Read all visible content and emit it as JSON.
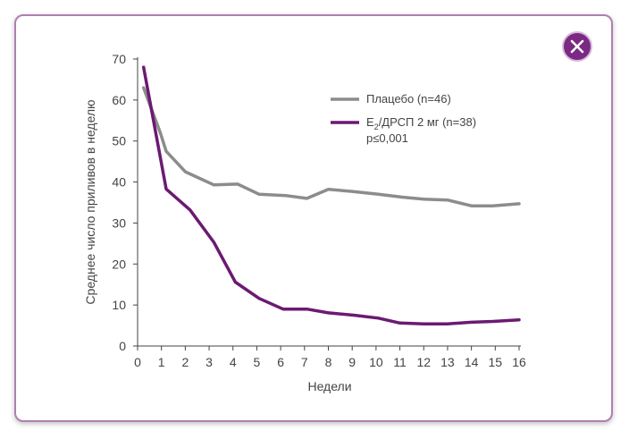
{
  "dialog": {
    "close_icon": "close-icon"
  },
  "chart_data": {
    "type": "line",
    "xlabel": "Недели",
    "ylabel": "Среднее число приливов в неделю",
    "xlim": [
      0,
      16
    ],
    "ylim": [
      0,
      70
    ],
    "xticks": [
      "0",
      "1",
      "2",
      "3",
      "4",
      "5",
      "6",
      "7",
      "8",
      "9",
      "10",
      "11",
      "12",
      "13",
      "14",
      "15",
      "16"
    ],
    "yticks": [
      "0",
      "10",
      "20",
      "30",
      "40",
      "50",
      "60",
      "70"
    ],
    "grid": false,
    "legend_position": "top-right",
    "series": [
      {
        "name": "Плацебо (n=46)",
        "color": "#8c8c8c",
        "x": [
          0.25,
          0.95,
          1.2,
          2.0,
          3.2,
          4.2,
          5.1,
          6.2,
          7.1,
          8.0,
          9.0,
          10.1,
          11.1,
          12.0,
          13.0,
          14.0,
          14.9,
          16.0
        ],
        "y": [
          63,
          52,
          47.5,
          42.5,
          39.3,
          39.5,
          37.0,
          36.7,
          36.0,
          38.2,
          37.7,
          37.0,
          36.3,
          35.8,
          35.6,
          34.2,
          34.2,
          34.7
        ]
      },
      {
        "name": "E2/ДРСП 2 мг (n=38)",
        "name_parts": {
          "base": "E",
          "sub": "2",
          "rest": "/ДРСП 2 мг (n=38)"
        },
        "color": "#6b1a72",
        "x": [
          0.25,
          1.2,
          2.2,
          3.2,
          4.1,
          5.1,
          6.1,
          7.1,
          8.0,
          9.1,
          10.1,
          11.0,
          12.0,
          13.0,
          14.0,
          14.9,
          16.0
        ],
        "y": [
          68,
          38.3,
          33.2,
          25.3,
          15.6,
          11.6,
          9.0,
          9.0,
          8.1,
          7.5,
          6.8,
          5.6,
          5.4,
          5.4,
          5.8,
          6.0,
          6.4
        ]
      }
    ],
    "annotations": [
      "p≤0,001"
    ]
  }
}
